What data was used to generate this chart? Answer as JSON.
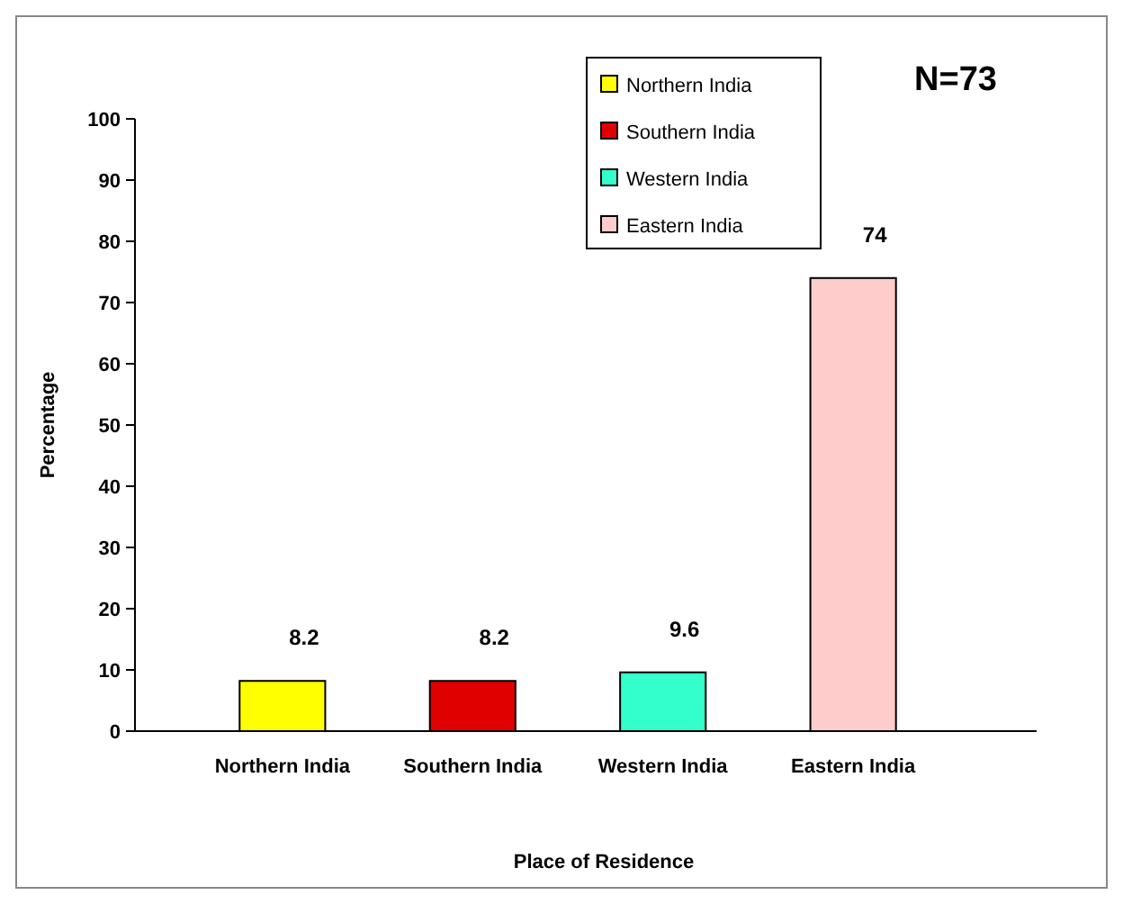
{
  "chart_data": {
    "type": "bar",
    "categories": [
      "Northern India",
      "Southern India",
      "Western India",
      "Eastern India"
    ],
    "series": [
      {
        "name": "Northern India",
        "color": "#ffff00",
        "values": [
          8.2,
          null,
          null,
          null
        ]
      },
      {
        "name": "Southern India",
        "color": "#e00000",
        "values": [
          null,
          8.2,
          null,
          null
        ]
      },
      {
        "name": "Western India",
        "color": "#33ffcc",
        "values": [
          null,
          null,
          9.6,
          null
        ]
      },
      {
        "name": "Eastern India",
        "color": "#ffcccc",
        "values": [
          null,
          null,
          null,
          74
        ]
      }
    ],
    "xlabel": "Place of Residence",
    "ylabel": "Percentage",
    "ylim": [
      0,
      100
    ],
    "yticks": [
      0,
      10,
      20,
      30,
      40,
      50,
      60,
      70,
      80,
      90,
      100
    ],
    "data_labels": true,
    "legend": "top",
    "annotations": [
      "N=73"
    ]
  }
}
